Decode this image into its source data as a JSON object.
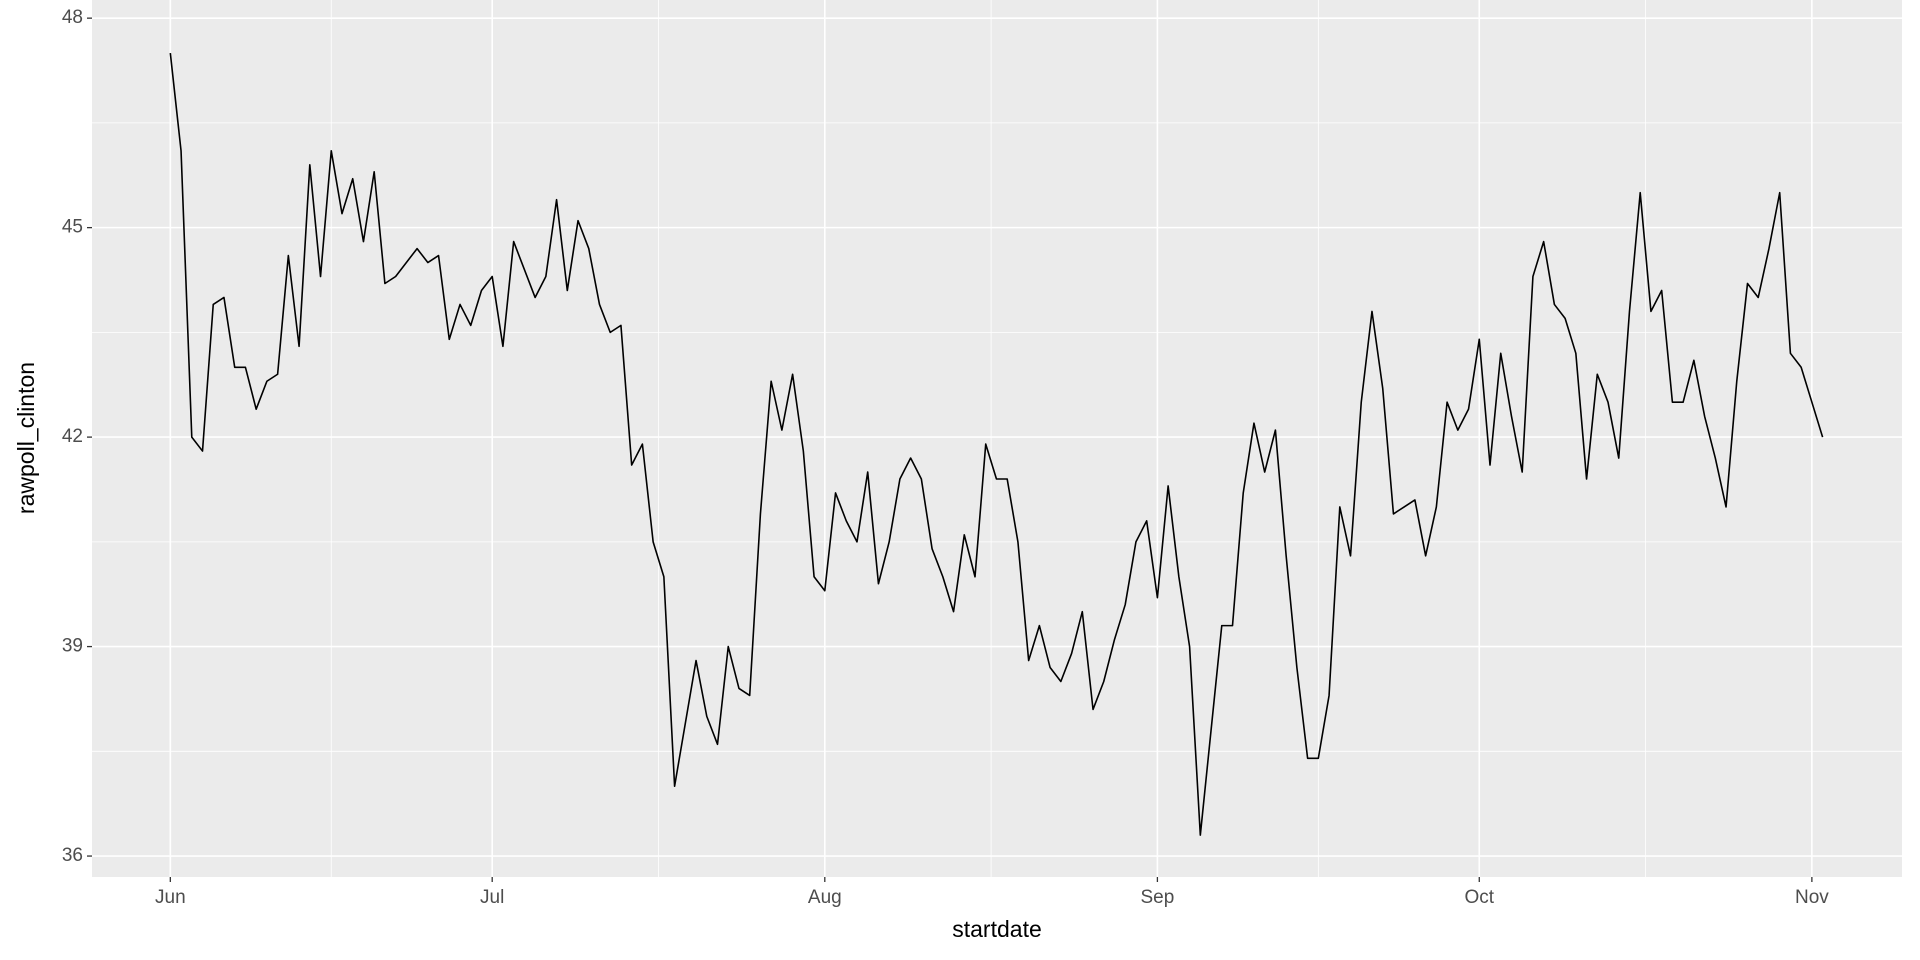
{
  "chart_data": {
    "type": "line",
    "x_label": "startdate",
    "y_label": "rawpoll_clinton",
    "x": [
      0,
      1,
      2,
      3,
      4,
      5,
      6,
      7,
      8,
      9,
      10,
      11,
      12,
      13,
      14,
      15,
      16,
      17,
      18,
      19,
      20,
      21,
      23,
      24,
      25,
      26,
      27,
      28,
      29,
      30,
      31,
      32,
      34,
      35,
      36,
      37,
      38,
      39,
      40,
      41,
      42,
      43,
      44,
      45,
      46,
      47,
      48,
      49,
      50,
      51,
      52,
      53,
      54,
      55,
      56,
      57,
      58,
      59,
      60,
      61,
      62,
      63,
      64,
      65,
      66,
      67,
      68,
      69,
      70,
      71,
      72,
      73,
      74,
      75,
      76,
      77,
      78,
      79,
      80,
      81,
      82,
      83,
      84,
      85,
      86,
      87,
      88,
      89,
      90,
      91,
      92,
      93,
      94,
      95,
      96,
      97,
      98,
      99,
      100,
      101,
      102,
      103,
      104,
      105,
      106,
      107,
      108,
      109,
      110,
      111,
      112,
      113,
      114,
      115,
      116,
      117,
      118,
      119,
      120,
      121,
      122,
      123,
      124,
      125,
      126,
      127,
      128,
      129,
      130,
      131,
      132,
      133,
      134,
      135,
      136,
      137,
      138,
      139,
      140,
      141,
      142,
      143,
      144,
      145,
      146,
      147,
      148,
      149,
      150,
      151,
      152,
      153,
      154
    ],
    "values": [
      47.5,
      46.1,
      42.0,
      41.8,
      43.9,
      44.0,
      43.0,
      43.0,
      42.4,
      42.8,
      42.9,
      44.6,
      43.3,
      45.9,
      44.3,
      46.1,
      45.2,
      45.7,
      44.8,
      45.8,
      44.2,
      44.3,
      44.7,
      44.5,
      44.6,
      43.4,
      43.9,
      43.6,
      44.1,
      44.3,
      43.3,
      44.8,
      44.0,
      44.3,
      45.4,
      44.1,
      45.1,
      44.7,
      43.9,
      43.5,
      43.6,
      41.6,
      41.9,
      40.5,
      40.0,
      37.0,
      37.9,
      38.8,
      38.0,
      37.6,
      39.0,
      38.4,
      38.3,
      40.9,
      42.8,
      42.1,
      42.9,
      41.8,
      40.0,
      39.8,
      41.2,
      40.8,
      40.5,
      41.5,
      39.9,
      40.5,
      41.4,
      41.7,
      41.4,
      40.4,
      40.0,
      39.5,
      40.6,
      40.0,
      41.9,
      41.4,
      41.4,
      40.5,
      38.8,
      39.3,
      38.7,
      38.5,
      38.9,
      39.5,
      38.1,
      38.5,
      39.1,
      39.6,
      40.5,
      40.8,
      39.7,
      41.3,
      40.0,
      39.0,
      36.3,
      37.8,
      39.3,
      39.3,
      41.2,
      42.2,
      41.5,
      42.1,
      40.3,
      38.7,
      37.4,
      37.4,
      38.3,
      41.0,
      40.3,
      42.5,
      43.8,
      42.7,
      40.9,
      41.0,
      41.1,
      40.3,
      41.0,
      42.5,
      42.1,
      42.4,
      43.4,
      41.6,
      43.2,
      42.3,
      41.5,
      44.3,
      44.8,
      43.9,
      43.7,
      43.2,
      41.4,
      42.9,
      42.5,
      41.7,
      43.8,
      45.5,
      43.8,
      44.1,
      42.5,
      42.5,
      43.1,
      42.3,
      41.7,
      41.0,
      42.8,
      44.2,
      44.0,
      44.7,
      45.5,
      43.2,
      43.0,
      42.5,
      42.0
    ],
    "color": "#000000",
    "xlim": [
      -7.3,
      161.4
    ],
    "xticks": [
      {
        "value": 0,
        "label": "Jun"
      },
      {
        "value": 30,
        "label": "Jul"
      },
      {
        "value": 61,
        "label": "Aug"
      },
      {
        "value": 92,
        "label": "Sep"
      },
      {
        "value": 122,
        "label": "Oct"
      },
      {
        "value": 153,
        "label": "Nov"
      }
    ],
    "ylim": [
      35.7,
      48.26
    ],
    "yticks": [
      36,
      39,
      42,
      45,
      48
    ],
    "grid": true
  }
}
